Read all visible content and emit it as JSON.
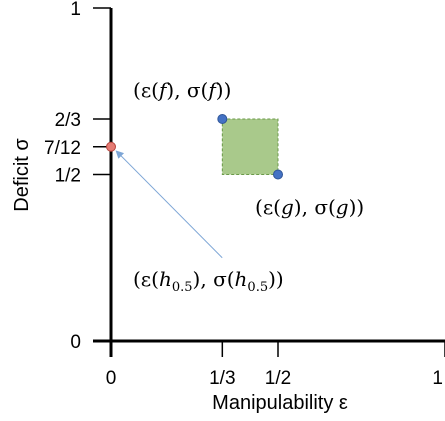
{
  "chart_data": {
    "type": "scatter",
    "xlabel": "Manipulability ε",
    "ylabel": "Deficit σ",
    "xlim": [
      0,
      1
    ],
    "ylim": [
      0,
      1
    ],
    "x_ticks": [
      {
        "value": 0,
        "label": "0"
      },
      {
        "value": 0.3333,
        "label": "1/3"
      },
      {
        "value": 0.5,
        "label": "1/2"
      },
      {
        "value": 1,
        "label": "1"
      }
    ],
    "y_ticks": [
      {
        "value": 0,
        "label": "0"
      },
      {
        "value": 0.5,
        "label": "1/2"
      },
      {
        "value": 0.5833,
        "label": "7/12"
      },
      {
        "value": 0.6667,
        "label": "2/3"
      },
      {
        "value": 1,
        "label": "1"
      }
    ],
    "points": [
      {
        "id": "f",
        "x": 0.3333,
        "y": 0.6667,
        "color": "#4472c4",
        "annotation": "(ε(f), σ(f))"
      },
      {
        "id": "g",
        "x": 0.5,
        "y": 0.5,
        "color": "#4472c4",
        "annotation": "(ε(g), σ(g))"
      },
      {
        "id": "h",
        "x": 0,
        "y": 0.5833,
        "color": "#e57b73",
        "annotation": "(ε(h0.5), σ(h0.5))"
      }
    ],
    "region": {
      "x": [
        0.3333,
        0.5
      ],
      "y": [
        0.5,
        0.6667
      ],
      "fill": "#a9c98b"
    },
    "arrow": {
      "from": [
        0.333,
        0.25
      ],
      "to": [
        0.0,
        0.5833
      ],
      "color": "#7ea6d6"
    }
  }
}
